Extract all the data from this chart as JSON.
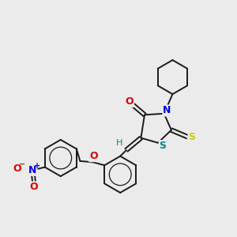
{
  "background_color": "#ebebeb",
  "bond_color": "#1a1a1a",
  "atom_colors": {
    "O": "#dd0000",
    "N": "#0000ee",
    "S_yellow": "#cccc00",
    "S_teal": "#008888",
    "H": "#008888",
    "NO2_N": "#0000ee",
    "NO2_O": "#dd0000"
  },
  "figsize": [
    3.0,
    3.0
  ],
  "dpi": 100
}
